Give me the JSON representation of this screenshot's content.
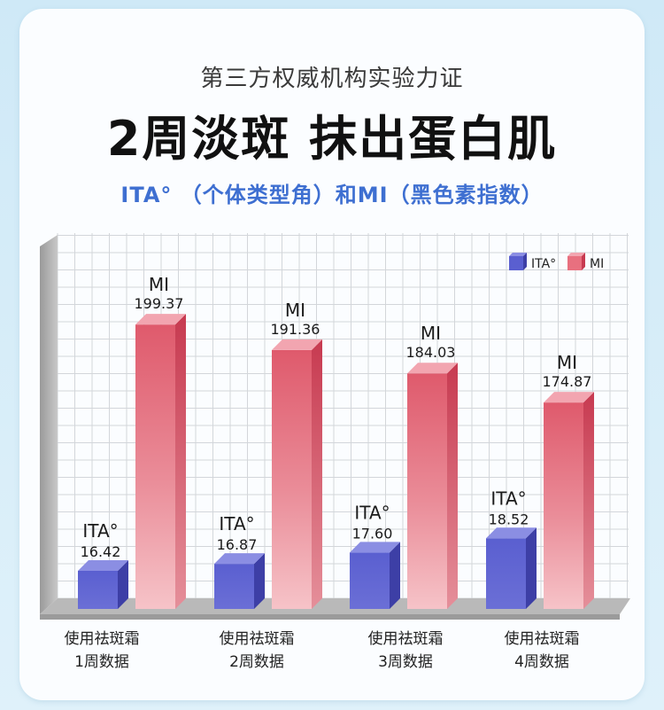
{
  "header": {
    "subtitle": "第三方权威机构实验力证",
    "title": "2周淡斑 抹出蛋白肌",
    "caption": "ITA° （个体类型角）和MI（黑色素指数）"
  },
  "colors": {
    "ita": "#5b5fc8",
    "mi": "#e8707f",
    "caption": "#3e6fd1"
  },
  "chart_data": {
    "type": "bar",
    "categories": [
      "使用祛斑霜\n1周数据",
      "使用祛斑霜\n2周数据",
      "使用祛斑霜\n3周数据",
      "使用祛斑霜\n4周数据"
    ],
    "category_lines": [
      [
        "使用祛斑霜",
        "1周数据"
      ],
      [
        "使用祛斑霜",
        "2周数据"
      ],
      [
        "使用祛斑霜",
        "3周数据"
      ],
      [
        "使用祛斑霜",
        "4周数据"
      ]
    ],
    "series": [
      {
        "name": "ITA°",
        "values": [
          16.42,
          16.87,
          17.6,
          18.52
        ],
        "labels": [
          "16.42",
          "16.87",
          "17.60",
          "18.52"
        ]
      },
      {
        "name": "MI",
        "values": [
          199.37,
          191.36,
          184.03,
          174.87
        ],
        "labels": [
          "199.37",
          "191.36",
          "184.03",
          "174.87"
        ]
      }
    ],
    "legend": {
      "position": "top-right",
      "items": [
        "ITA°",
        "MI"
      ]
    },
    "grid": true,
    "style": "3d-bar"
  }
}
